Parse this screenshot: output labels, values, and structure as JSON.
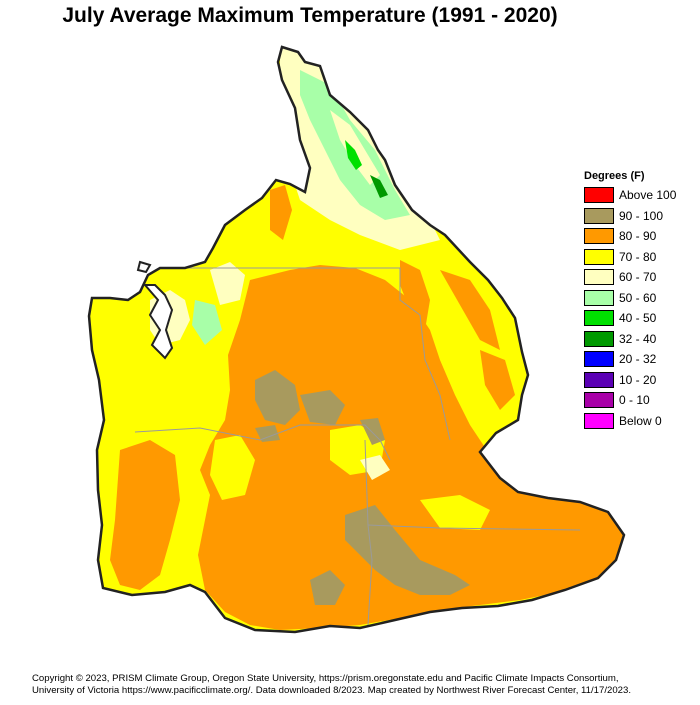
{
  "title": "July Average Maximum Temperature (1991 - 2020)",
  "legend": {
    "title": "Degrees (F)",
    "items": [
      {
        "label": "Above 100",
        "color": "#ff0000"
      },
      {
        "label": "90 - 100",
        "color": "#a89a5e"
      },
      {
        "label": "80 - 90",
        "color": "#ff9900"
      },
      {
        "label": "70 - 80",
        "color": "#ffff00"
      },
      {
        "label": "60 - 70",
        "color": "#ffffc0"
      },
      {
        "label": "50 - 60",
        "color": "#a8ffa8"
      },
      {
        "label": "40 - 50",
        "color": "#00e000"
      },
      {
        "label": "32 - 40",
        "color": "#009900"
      },
      {
        "label": "20 - 32",
        "color": "#0000ff"
      },
      {
        "label": "10 - 20",
        "color": "#5a00b4"
      },
      {
        "label": "0 - 10",
        "color": "#a800a8"
      },
      {
        "label": "Below 0",
        "color": "#ff00ff"
      }
    ]
  },
  "footer": {
    "line1": "Copyright © 2023, PRISM Climate Group, Oregon State University, https://prism.oregonstate.edu and Pacific Climate Impacts Consortium,",
    "line2": "University of Victoria https://www.pacificclimate.org/.  Data downloaded 8/2023. Map created by Northwest River Forecast Center, 11/17/2023."
  }
}
